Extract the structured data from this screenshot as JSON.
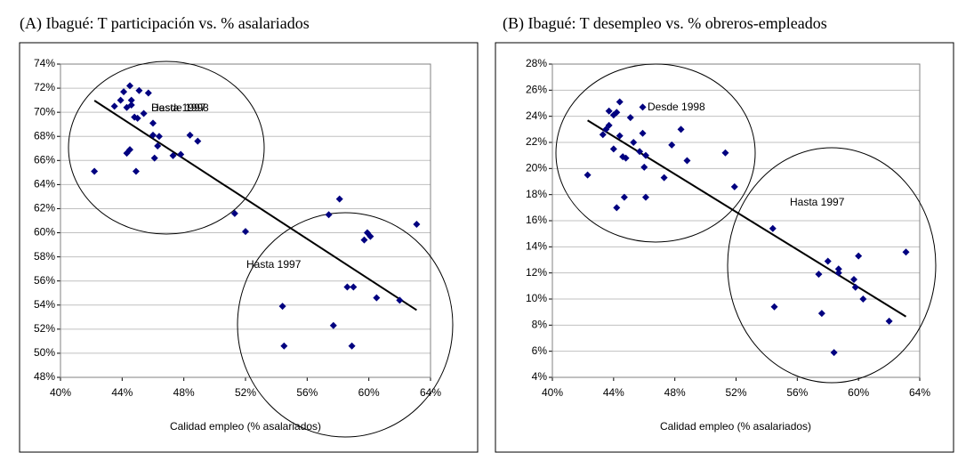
{
  "chart_data": [
    {
      "type": "scatter",
      "title": "(A) Ibagué: T participación vs. % asalariados",
      "x_label": "Calidad empleo (% asalariados)",
      "color": "#000080",
      "grid": true,
      "xlim": [
        40,
        64
      ],
      "xticks": [
        {
          "value": 40,
          "label": "40%"
        },
        {
          "value": 44,
          "label": "44%"
        },
        {
          "value": 48,
          "label": "48%"
        },
        {
          "value": 52,
          "label": "52%"
        },
        {
          "value": 56,
          "label": "56%"
        },
        {
          "value": 60,
          "label": "60%"
        },
        {
          "value": 64,
          "label": "64%"
        }
      ],
      "ylim": [
        48,
        74
      ],
      "yticks": [
        {
          "value": 48,
          "label": "48%"
        },
        {
          "value": 50,
          "label": "50%"
        },
        {
          "value": 52,
          "label": "52%"
        },
        {
          "value": 54,
          "label": "54%"
        },
        {
          "value": 56,
          "label": "56%"
        },
        {
          "value": 58,
          "label": "58%"
        },
        {
          "value": 60,
          "label": "60%"
        },
        {
          "value": 62,
          "label": "62%"
        },
        {
          "value": 64,
          "label": "64%"
        },
        {
          "value": 66,
          "label": "66%"
        },
        {
          "value": 68,
          "label": "68%"
        },
        {
          "value": 70,
          "label": "70%"
        },
        {
          "value": 72,
          "label": "72%"
        },
        {
          "value": 74,
          "label": "74%"
        }
      ],
      "x": [
        42.2,
        43.5,
        43.9,
        44.1,
        44.3,
        44.5,
        44.6,
        44.6,
        44.8,
        44.3,
        44.5,
        45.0,
        45.1,
        44.9,
        45.4,
        45.7,
        46.0,
        46.0,
        46.1,
        46.3,
        46.4,
        47.3,
        47.8,
        48.4,
        48.9,
        51.3,
        52.0,
        54.4,
        54.5,
        57.4,
        57.7,
        58.1,
        58.6,
        59.0,
        58.9,
        59.7,
        59.9,
        60.1,
        60.5,
        62.0,
        63.1
      ],
      "values": [
        65.1,
        70.5,
        71.0,
        71.7,
        70.4,
        72.2,
        71.0,
        70.6,
        69.6,
        66.6,
        66.9,
        69.5,
        71.8,
        65.1,
        69.9,
        71.6,
        69.1,
        68.1,
        66.2,
        67.2,
        68.0,
        66.4,
        66.5,
        68.1,
        67.6,
        61.6,
        60.1,
        53.9,
        50.6,
        61.5,
        52.3,
        62.8,
        55.5,
        55.5,
        50.6,
        59.4,
        60.0,
        59.7,
        54.6,
        54.4,
        60.7
      ],
      "annotations": [
        "Desde 1998",
        "Hasta 1997",
        "Hasta 1997"
      ]
    },
    {
      "type": "scatter",
      "title": "(B) Ibagué: T desempleo vs. %  obreros-empleados",
      "x_label": "Calidad empleo (% asalariados)",
      "color": "#000080",
      "grid": true,
      "xlim": [
        40,
        64
      ],
      "xticks": [
        {
          "value": 40,
          "label": "40%"
        },
        {
          "value": 44,
          "label": "44%"
        },
        {
          "value": 48,
          "label": "48%"
        },
        {
          "value": 52,
          "label": "52%"
        },
        {
          "value": 56,
          "label": "56%"
        },
        {
          "value": 60,
          "label": "60%"
        },
        {
          "value": 64,
          "label": "64%"
        }
      ],
      "ylim": [
        4,
        28
      ],
      "yticks": [
        {
          "value": 4,
          "label": "4%"
        },
        {
          "value": 6,
          "label": "6%"
        },
        {
          "value": 8,
          "label": "8%"
        },
        {
          "value": 10,
          "label": "10%"
        },
        {
          "value": 12,
          "label": "12%"
        },
        {
          "value": 14,
          "label": "14%"
        },
        {
          "value": 16,
          "label": "16%"
        },
        {
          "value": 18,
          "label": "18%"
        },
        {
          "value": 20,
          "label": "20%"
        },
        {
          "value": 22,
          "label": "22%"
        },
        {
          "value": 24,
          "label": "24%"
        },
        {
          "value": 26,
          "label": "26%"
        },
        {
          "value": 28,
          "label": "28%"
        }
      ],
      "x": [
        42.3,
        43.3,
        43.5,
        43.7,
        43.7,
        44.0,
        44.0,
        44.2,
        44.2,
        44.4,
        44.4,
        44.6,
        44.7,
        44.8,
        45.1,
        45.3,
        45.7,
        45.9,
        45.9,
        46.0,
        46.1,
        46.1,
        47.3,
        47.8,
        48.4,
        48.8,
        51.3,
        51.9,
        54.4,
        54.5,
        57.4,
        57.6,
        58.0,
        58.4,
        58.7,
        58.7,
        59.7,
        59.8,
        60.0,
        60.3,
        62.0,
        63.1
      ],
      "values": [
        19.5,
        22.6,
        23.0,
        23.3,
        24.4,
        24.1,
        21.5,
        24.3,
        17.0,
        25.1,
        22.5,
        20.9,
        17.8,
        20.8,
        23.9,
        22.0,
        21.3,
        24.7,
        22.7,
        20.1,
        21.0,
        17.8,
        19.3,
        21.8,
        23.0,
        20.6,
        21.2,
        18.6,
        15.4,
        9.4,
        11.9,
        8.9,
        12.9,
        5.9,
        12.3,
        12.0,
        11.5,
        10.9,
        13.3,
        10.0,
        8.3,
        13.6
      ],
      "annotations": [
        "Desde 1998",
        "Hasta 1997"
      ]
    }
  ]
}
